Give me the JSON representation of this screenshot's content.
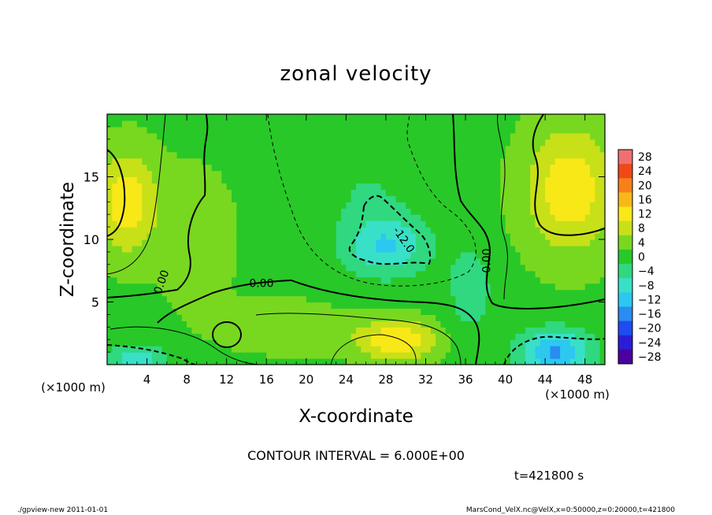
{
  "chart_data": {
    "type": "heatmap",
    "title": "zonal velocity",
    "xlabel": "X-coordinate",
    "ylabel": "Z-coordinate",
    "x_unit_label": "(×1000 m)",
    "y_unit_label": "(×1000 m)",
    "x_ticks": [
      4,
      8,
      12,
      16,
      20,
      24,
      28,
      32,
      36,
      40,
      44,
      48
    ],
    "y_ticks": [
      5,
      10,
      15
    ],
    "xlim": [
      0,
      50
    ],
    "ylim": [
      0,
      20
    ],
    "colorbar": {
      "levels": [
        28,
        24,
        20,
        16,
        12,
        8,
        4,
        0,
        -4,
        -8,
        -12,
        -16,
        -20,
        -24,
        -28
      ]
    },
    "contour_labels": [
      {
        "text": "0.00",
        "x": 5.8,
        "y": 6.5,
        "rotate": -70
      },
      {
        "text": "0.00",
        "x": 15.5,
        "y": 6.2,
        "rotate": 0
      },
      {
        "text": "-12.0",
        "x": 29.5,
        "y": 9.8,
        "rotate": 55
      },
      {
        "text": "0.00",
        "x": 38.5,
        "y": 8.3,
        "rotate": -90
      }
    ],
    "field": {
      "background": 1,
      "features": [
        {
          "x": 28,
          "z": 9.5,
          "amp": -11,
          "sx": 4.2,
          "sz": 2.4
        },
        {
          "x": 26,
          "z": 14,
          "amp": -3,
          "sx": 5,
          "sz": 4
        },
        {
          "x": 29,
          "z": 2,
          "amp": 13,
          "sx": 4,
          "sz": 1.6
        },
        {
          "x": 2,
          "z": 13,
          "amp": 12,
          "sx": 3,
          "sz": 4
        },
        {
          "x": 46.5,
          "z": 14,
          "amp": 12,
          "sx": 4.5,
          "sz": 5
        },
        {
          "x": 45,
          "z": 1,
          "amp": -16,
          "sx": 3.5,
          "sz": 1.8
        },
        {
          "x": 3,
          "z": 0.5,
          "amp": -9,
          "sx": 3,
          "sz": 1.2
        },
        {
          "x": 18,
          "z": 3,
          "amp": 4,
          "sx": 6,
          "sz": 2
        },
        {
          "x": 36.5,
          "z": 6,
          "amp": -5,
          "sx": 2.5,
          "sz": 4
        },
        {
          "x": 9,
          "z": 10,
          "amp": 3,
          "sx": 4,
          "sz": 6
        }
      ]
    }
  },
  "contour_interval": "CONTOUR INTERVAL = 6.000E+00",
  "time_label": "t=421800 s",
  "footer_left": "./gpview-new  2011-01-01",
  "footer_right": "MarsCond_VelX.nc@VelX,x=0:50000,z=0:20000,t=421800",
  "colors": {
    "scale": [
      "#4b00a0",
      "#2a1cd8",
      "#1f4cf0",
      "#2a8cf0",
      "#2cc8f0",
      "#38e0c8",
      "#30d880",
      "#28c828",
      "#78d820",
      "#c8e018",
      "#f8e818",
      "#f8b818",
      "#f88018",
      "#f04818",
      "#f07070"
    ]
  }
}
